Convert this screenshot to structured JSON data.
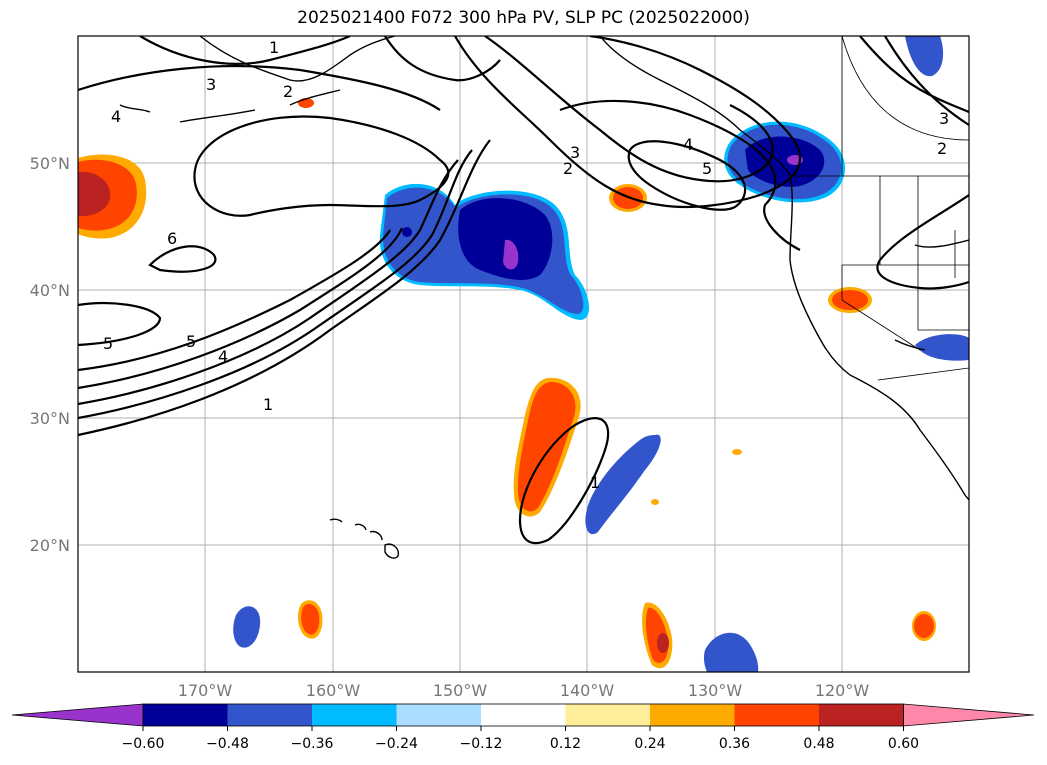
{
  "title": "2025021400 F072 300 hPa PV, SLP PC (2025022000)",
  "latitude_labels": [
    "50°N",
    "40°N",
    "30°N",
    "20°N"
  ],
  "longitude_labels": [
    "170°W",
    "160°W",
    "150°W",
    "140°W",
    "130°W",
    "120°W"
  ],
  "contour_labels": [
    "1",
    "3",
    "2",
    "4",
    "3",
    "2",
    "4",
    "5",
    "3",
    "2",
    "6",
    "5",
    "5",
    "4",
    "1",
    "1"
  ],
  "colorbar": {
    "colors": [
      "#9933cc",
      "#000099",
      "#3355cc",
      "#00bbff",
      "#aaddff",
      "#ffffff",
      "#ffee99",
      "#ffaa00",
      "#ff4400",
      "#bb2222",
      "#ff88aa"
    ],
    "tick_labels": [
      "−0.60",
      "−0.48",
      "−0.36",
      "−0.24",
      "−0.12",
      "0.12",
      "0.24",
      "0.36",
      "0.48",
      "0.60"
    ]
  }
}
